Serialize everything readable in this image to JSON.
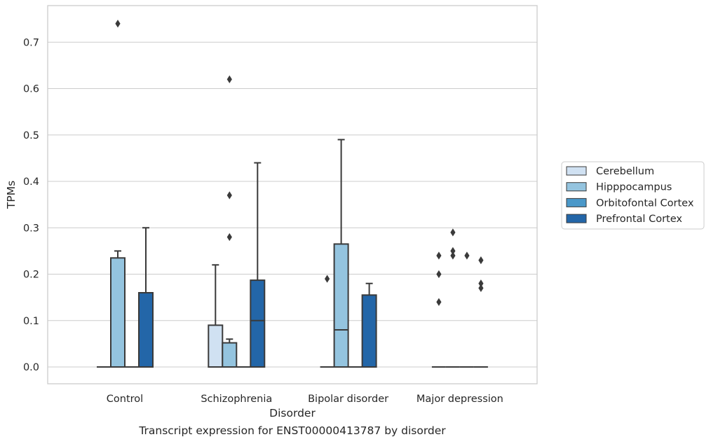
{
  "caption": "Transcript expression for ENST00000413787 by disorder",
  "chart_data": {
    "type": "boxplot",
    "xlabel": "Disorder",
    "ylabel": "TPMs",
    "ylim": [
      -0.035,
      0.775
    ],
    "yticks": [
      "0.0",
      "0.1",
      "0.2",
      "0.3",
      "0.4",
      "0.5",
      "0.6",
      "0.7"
    ],
    "grid": "horizontal",
    "legend_position": "right",
    "categories": [
      "Control",
      "Schizophrenia",
      "Bipolar disorder",
      "Major depression"
    ],
    "series": [
      {
        "name": "Cerebellum",
        "color": "#d0e1f2",
        "boxes": [
          {
            "q1": 0,
            "median": 0,
            "q3": 0,
            "whisker_low": 0,
            "whisker_high": 0,
            "outliers": []
          },
          {
            "q1": 0,
            "median": 0,
            "q3": 0.09,
            "whisker_low": 0,
            "whisker_high": 0.22,
            "outliers": []
          },
          {
            "q1": 0,
            "median": 0,
            "q3": 0,
            "whisker_low": 0,
            "whisker_high": 0,
            "outliers": [
              0.19
            ]
          },
          {
            "q1": 0,
            "median": 0,
            "q3": 0,
            "whisker_low": 0,
            "whisker_high": 0,
            "outliers": [
              0.14,
              0.2,
              0.24
            ]
          }
        ]
      },
      {
        "name": "Hipppocampus",
        "color": "#94c4df",
        "boxes": [
          {
            "q1": 0,
            "median": 0,
            "q3": 0.235,
            "whisker_low": 0,
            "whisker_high": 0.25,
            "outliers": [
              0.74
            ]
          },
          {
            "q1": 0,
            "median": 0,
            "q3": 0.052,
            "whisker_low": 0,
            "whisker_high": 0.06,
            "outliers": [
              0.28,
              0.37,
              0.62
            ]
          },
          {
            "q1": 0,
            "median": 0.08,
            "q3": 0.265,
            "whisker_low": 0,
            "whisker_high": 0.49,
            "outliers": []
          },
          {
            "q1": 0,
            "median": 0,
            "q3": 0,
            "whisker_low": 0,
            "whisker_high": 0,
            "outliers": [
              0.24,
              0.25,
              0.29
            ]
          }
        ]
      },
      {
        "name": "Orbitofontal Cortex",
        "color": "#4a98c9",
        "boxes": [
          {
            "q1": 0,
            "median": 0,
            "q3": 0,
            "whisker_low": 0,
            "whisker_high": 0,
            "outliers": []
          },
          {
            "q1": 0,
            "median": 0,
            "q3": 0,
            "whisker_low": 0,
            "whisker_high": 0,
            "outliers": []
          },
          {
            "q1": 0,
            "median": 0,
            "q3": 0,
            "whisker_low": 0,
            "whisker_high": 0,
            "outliers": []
          },
          {
            "q1": 0,
            "median": 0,
            "q3": 0,
            "whisker_low": 0,
            "whisker_high": 0,
            "outliers": [
              0.24
            ]
          }
        ]
      },
      {
        "name": "Prefrontal Cortex",
        "color": "#2366a8",
        "boxes": [
          {
            "q1": 0,
            "median": 0,
            "q3": 0.16,
            "whisker_low": 0,
            "whisker_high": 0.3,
            "outliers": []
          },
          {
            "q1": 0,
            "median": 0.1,
            "q3": 0.187,
            "whisker_low": 0,
            "whisker_high": 0.44,
            "outliers": []
          },
          {
            "q1": 0,
            "median": 0,
            "q3": 0.155,
            "whisker_low": 0,
            "whisker_high": 0.18,
            "outliers": []
          },
          {
            "q1": 0,
            "median": 0,
            "q3": 0,
            "whisker_low": 0,
            "whisker_high": 0,
            "outliers": [
              0.17,
              0.18,
              0.23
            ]
          }
        ]
      }
    ]
  }
}
